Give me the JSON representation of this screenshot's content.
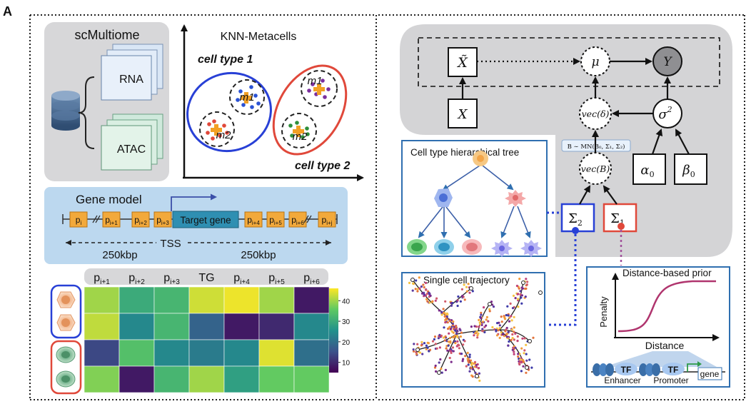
{
  "panel_label": "A",
  "scmultiome": {
    "title": "scMultiome",
    "rna": "RNA",
    "atac": "ATAC"
  },
  "knn": {
    "title": "KNN-Metacells",
    "cell_type_1": "cell type 1",
    "cell_type_2": "cell type 2",
    "m1": "m1",
    "m2": "m2"
  },
  "gene_model": {
    "title": "Gene model",
    "target": "Target gene",
    "left_peaks": [
      [
        "p",
        "i"
      ],
      [
        "p",
        "i+1"
      ],
      [
        "p",
        "i+2"
      ],
      [
        "p",
        "i+3"
      ]
    ],
    "right_peaks": [
      [
        "p",
        "i+4"
      ],
      [
        "p",
        "i+5"
      ],
      [
        "p",
        "i+6"
      ],
      [
        "p",
        "i+j"
      ]
    ],
    "tss": "TSS",
    "dist_left": "250kbp",
    "dist_right": "250kbp"
  },
  "heatmap": {
    "columns": [
      [
        "p",
        "i+1"
      ],
      [
        "p",
        "i+2"
      ],
      [
        "p",
        "i+3"
      ],
      [
        "TG",
        ""
      ],
      [
        "p",
        "i+4"
      ],
      [
        "p",
        "i+5"
      ],
      [
        "p",
        "i+6"
      ]
    ],
    "colorbar_ticks": [
      "40",
      "30",
      "20",
      "10"
    ],
    "colors": {
      "low": "#440154",
      "high": "#fde725"
    },
    "values": [
      [
        40,
        30,
        32,
        43,
        45,
        40,
        8
      ],
      [
        42,
        24,
        32,
        18,
        8,
        10,
        24
      ],
      [
        14,
        34,
        24,
        22,
        24,
        44,
        20
      ],
      [
        38,
        8,
        32,
        40,
        28,
        36,
        36
      ]
    ]
  },
  "model": {
    "xtilde": "X̃",
    "mu": "μ",
    "y": "Y",
    "x": "X",
    "vec_delta": "vec(δ)",
    "sigma2": "σ",
    "sigma2_sup": "2",
    "vec_b": "vec(B)",
    "alpha0": "α",
    "alpha0_sub": "0",
    "beta0": "β",
    "beta0_sub": "0",
    "sigma_2_box": "Σ",
    "sigma_2_sub": "2",
    "sigma_1_box": "Σ",
    "sigma_1_sub": "1",
    "b_dist": "B ∼ MN(B₀, Σ₁, Σ₂)"
  },
  "hier_tree": {
    "title": "Cell type hierarchical tree"
  },
  "trajectory": {
    "title": "Single cell trajectory"
  },
  "prior": {
    "title": "Distance-based prior",
    "ylabel": "Penalty",
    "xlabel": "Distance",
    "tf1": "TF",
    "tf2": "TF",
    "enhancer": "Enhancer",
    "promoter": "Promoter",
    "gene": "gene"
  }
}
